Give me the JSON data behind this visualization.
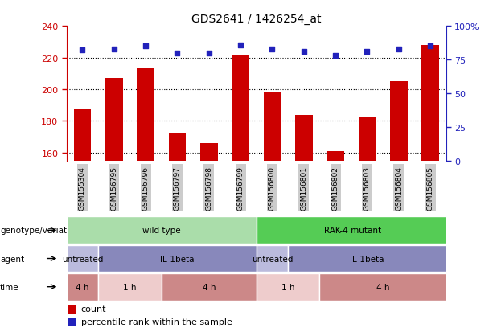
{
  "title": "GDS2641 / 1426254_at",
  "samples": [
    "GSM155304",
    "GSM156795",
    "GSM156796",
    "GSM156797",
    "GSM156798",
    "GSM156799",
    "GSM156800",
    "GSM156801",
    "GSM156802",
    "GSM156803",
    "GSM156804",
    "GSM156805"
  ],
  "counts": [
    188,
    207,
    213,
    172,
    166,
    222,
    198,
    184,
    161,
    183,
    205,
    228
  ],
  "percentile_ranks": [
    82,
    83,
    85,
    80,
    80,
    86,
    83,
    81,
    78,
    81,
    83,
    85
  ],
  "ylim_left": [
    155,
    240
  ],
  "ylim_right": [
    0,
    100
  ],
  "yticks_left": [
    160,
    180,
    200,
    220,
    240
  ],
  "yticks_right": [
    0,
    25,
    50,
    75,
    100
  ],
  "bar_color": "#cc0000",
  "dot_color": "#2222bb",
  "grid_color": "#000000",
  "genotype_row": {
    "label": "genotype/variation",
    "groups": [
      {
        "text": "wild type",
        "start": 0,
        "end": 6,
        "color": "#aaddaa"
      },
      {
        "text": "IRAK-4 mutant",
        "start": 6,
        "end": 12,
        "color": "#55cc55"
      }
    ]
  },
  "agent_row": {
    "label": "agent",
    "groups": [
      {
        "text": "untreated",
        "start": 0,
        "end": 1,
        "color": "#bbbbdd"
      },
      {
        "text": "IL-1beta",
        "start": 1,
        "end": 6,
        "color": "#8888bb"
      },
      {
        "text": "untreated",
        "start": 6,
        "end": 7,
        "color": "#bbbbdd"
      },
      {
        "text": "IL-1beta",
        "start": 7,
        "end": 12,
        "color": "#8888bb"
      }
    ]
  },
  "time_row": {
    "label": "time",
    "groups": [
      {
        "text": "4 h",
        "start": 0,
        "end": 1,
        "color": "#cc8888"
      },
      {
        "text": "1 h",
        "start": 1,
        "end": 3,
        "color": "#eecccc"
      },
      {
        "text": "4 h",
        "start": 3,
        "end": 6,
        "color": "#cc8888"
      },
      {
        "text": "1 h",
        "start": 6,
        "end": 8,
        "color": "#eecccc"
      },
      {
        "text": "4 h",
        "start": 8,
        "end": 12,
        "color": "#cc8888"
      }
    ]
  },
  "legend_count_color": "#cc0000",
  "legend_dot_color": "#2222bb",
  "ax_left_color": "#cc0000",
  "ax_right_color": "#2222bb",
  "background_color": "#ffffff",
  "tick_label_bg": "#cccccc"
}
